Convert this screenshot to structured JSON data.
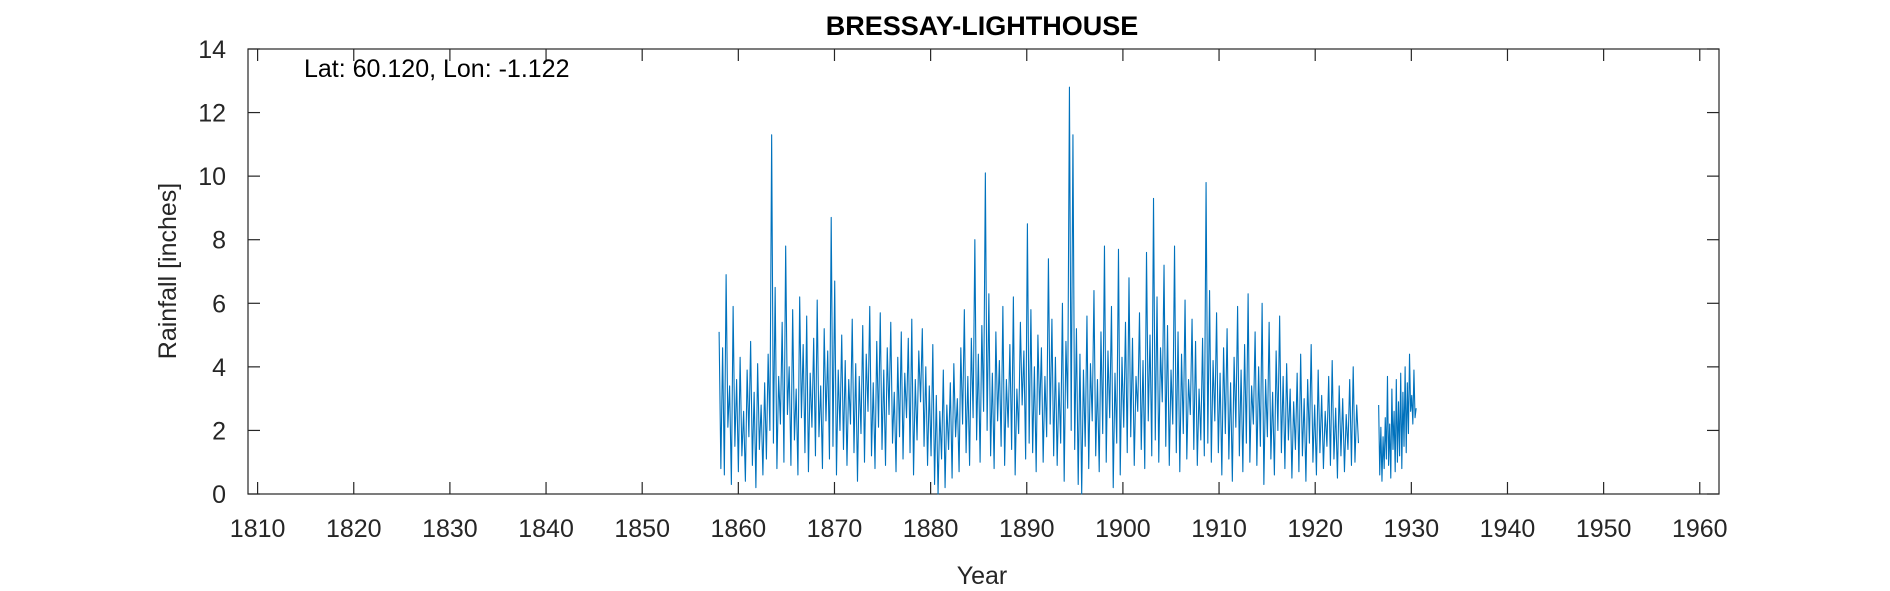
{
  "chart_data": {
    "type": "line",
    "title": "BRESSAY-LIGHTHOUSE",
    "annotation": "Lat: 60.120, Lon: -1.122",
    "xlabel": "Year",
    "ylabel": "Rainfall [inches]",
    "xlim": [
      1809,
      1962
    ],
    "ylim": [
      0,
      14
    ],
    "xticks": [
      1810,
      1820,
      1830,
      1840,
      1850,
      1860,
      1870,
      1880,
      1890,
      1900,
      1910,
      1920,
      1930,
      1940,
      1950,
      1960
    ],
    "yticks": [
      0,
      2,
      4,
      6,
      8,
      10,
      12,
      14
    ],
    "grid": false,
    "series": [
      {
        "color": "#0072BD",
        "segments": [
          {
            "x_start": 1858.0,
            "x_end": 1924.5,
            "step": 0.0833,
            "values": [
              5.1,
              0.8,
              4.6,
              0.6,
              6.9,
              2.1,
              3.4,
              0.3,
              5.9,
              1.5,
              3.6,
              0.7,
              4.3,
              1.2,
              2.6,
              0.4,
              3.9,
              1.8,
              4.8,
              0.9,
              3.2,
              0.2,
              4.1,
              1.4,
              2.8,
              0.6,
              3.5,
              1.1,
              4.4,
              2.0,
              11.3,
              1.6,
              6.5,
              0.8,
              3.7,
              2.2,
              5.4,
              1.0,
              7.8,
              2.5,
              4.0,
              0.9,
              5.8,
              1.7,
              3.3,
              0.6,
              6.2,
              2.4,
              4.7,
              1.3,
              5.6,
              0.7,
              3.8,
              2.1,
              4.9,
              1.2,
              6.1,
              1.8,
              3.4,
              0.8,
              5.2,
              2.3,
              4.5,
              1.1,
              8.7,
              1.5,
              6.7,
              0.6,
              3.9,
              2.0,
              5.0,
              1.4,
              4.2,
              0.9,
              3.6,
              2.2,
              5.5,
              1.3,
              4.1,
              0.4,
              3.7,
              1.9,
              5.3,
              1.0,
              4.4,
              2.6,
              5.9,
              1.2,
              3.5,
              0.8,
              4.8,
              2.1,
              5.7,
              1.4,
              3.9,
              0.9,
              4.6,
              2.5,
              5.4,
              1.6,
              3.2,
              0.7,
              4.3,
              1.8,
              5.1,
              1.1,
              3.8,
              2.4,
              4.9,
              1.3,
              5.5,
              0.6,
              3.6,
              1.7,
              4.5,
              2.9,
              5.2,
              1.5,
              4.0,
              0.9,
              3.4,
              1.2,
              4.7,
              0.3,
              3.1,
              0.0,
              2.6,
              1.1,
              3.9,
              0.2,
              2.8,
              1.4,
              3.5,
              0.5,
              4.1,
              1.8,
              3.0,
              0.7,
              4.6,
              2.2,
              5.8,
              1.3,
              3.7,
              0.9,
              4.9,
              2.4,
              8.0,
              1.7,
              4.4,
              1.0,
              5.3,
              2.6,
              10.1,
              2.0,
              6.3,
              1.2,
              3.8,
              0.8,
              5.1,
              2.3,
              4.2,
              1.5,
              5.9,
              0.9,
              3.6,
              2.1,
              4.7,
              1.4,
              6.2,
              0.6,
              3.3,
              1.9,
              5.4,
              2.8,
              4.5,
              1.1,
              8.5,
              1.6,
              5.8,
              1.3,
              4.0,
              0.7,
              5.0,
              2.5,
              4.6,
              1.0,
              3.7,
              1.8,
              7.4,
              2.2,
              5.5,
              1.2,
              4.3,
              0.9,
              3.5,
              1.6,
              6.0,
              0.4,
              4.8,
              2.7,
              12.8,
              2.0,
              11.3,
              1.4,
              5.2,
              0.3,
              4.4,
              0.0,
              3.9,
              1.5,
              5.6,
              0.8,
              4.1,
              2.3,
              6.4,
              1.2,
              3.6,
              0.7,
              5.1,
              1.9,
              7.8,
              1.0,
              4.5,
              2.4,
              5.9,
              0.2,
              3.8,
              1.6,
              7.7,
              0.6,
              4.3,
              2.1,
              5.4,
              1.3,
              6.8,
              1.8,
              4.9,
              0.9,
              3.7,
              2.6,
              5.7,
              1.4,
              4.2,
              0.8,
              7.6,
              2.3,
              5.0,
              1.2,
              9.3,
              1.7,
              6.2,
              1.0,
              4.6,
              2.9,
              7.2,
              1.5,
              5.3,
              0.9,
              3.9,
              2.2,
              7.8,
              1.3,
              5.1,
              0.7,
              4.4,
              1.9,
              6.1,
              1.1,
              3.6,
              2.5,
              5.5,
              1.4,
              4.8,
              0.9,
              3.3,
              1.7,
              4.9,
              1.2,
              9.8,
              1.6,
              6.4,
              1.0,
              4.2,
              2.3,
              5.7,
              1.3,
              3.8,
              0.6,
              4.6,
              1.9,
              5.2,
              1.1,
              3.5,
              0.4,
              4.3,
              2.1,
              5.9,
              1.2,
              3.9,
              0.7,
              4.7,
              1.6,
              6.3,
              1.0,
              3.4,
              2.2,
              5.1,
              0.9,
              4.0,
              1.5,
              6.0,
              0.3,
              3.6,
              1.8,
              5.4,
              1.1,
              3.2,
              0.6,
              4.5,
              2.0,
              5.6,
              1.3,
              3.7,
              0.8,
              4.1,
              1.7,
              3.3,
              0.5,
              2.9,
              1.4,
              3.8,
              0.7,
              4.4,
              1.2,
              3.0,
              0.4,
              3.6,
              1.6,
              4.7,
              1.0,
              2.8,
              0.6,
              3.9,
              1.3,
              3.1,
              0.8,
              2.6,
              1.5,
              3.7,
              0.9,
              4.2,
              1.1,
              2.7,
              0.5,
              3.4,
              1.2,
              3.0,
              0.7,
              2.5,
              1.4,
              3.6,
              0.9,
              4.0,
              1.0,
              2.8,
              1.6
            ]
          },
          {
            "x_start": 1926.6,
            "x_end": 1930.5,
            "step": 0.0833,
            "values": [
              2.8,
              0.6,
              2.1,
              0.4,
              1.8,
              0.8,
              2.4,
              1.1,
              3.7,
              0.9,
              2.2,
              0.5,
              3.3,
              1.4,
              2.6,
              0.7,
              3.6,
              1.0,
              2.9,
              1.2,
              3.8,
              0.8,
              3.2,
              1.5,
              4.0,
              1.3,
              3.5,
              1.9,
              4.4,
              2.6,
              3.1,
              2.2,
              3.9,
              2.4,
              2.7
            ]
          }
        ]
      }
    ]
  }
}
